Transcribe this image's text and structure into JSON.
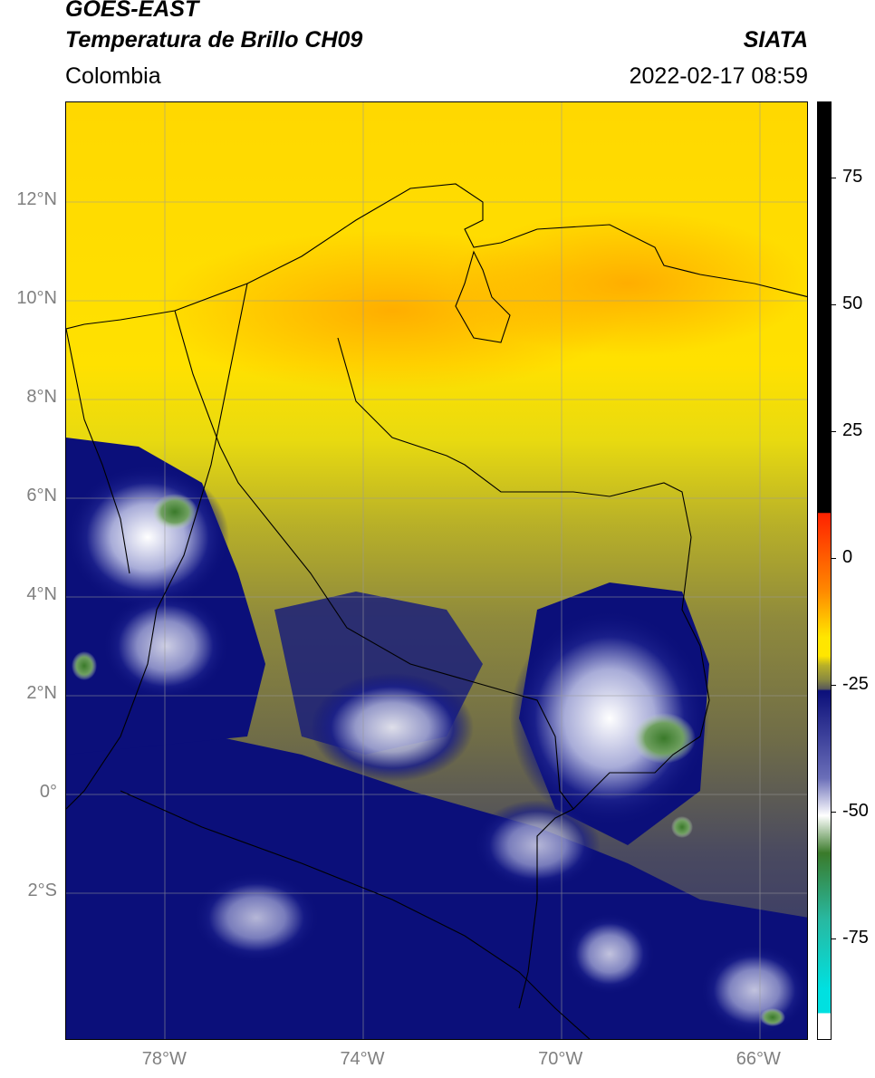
{
  "header": {
    "title_line1": "GOES-EAST",
    "title_line2": "Temperatura de Brillo CH09",
    "source": "SIATA",
    "region": "Colombia",
    "timestamp": "2022-02-17 08:59"
  },
  "map": {
    "lat_labels": [
      "12°N",
      "10°N",
      "8°N",
      "6°N",
      "4°N",
      "2°N",
      "0°",
      "2°S"
    ],
    "lon_labels": [
      "78°W",
      "74°W",
      "70°W",
      "66°W"
    ],
    "extent": {
      "lon_min": -80,
      "lon_max": -65,
      "lat_min": -5,
      "lat_max": 14
    }
  },
  "colorbar": {
    "tick_labels": [
      "75",
      "50",
      "25",
      "0",
      "-25",
      "-50",
      "-75"
    ],
    "range": [
      -95,
      90
    ],
    "colors": {
      "warm_top": "#000000",
      "red": "#ff2200",
      "orange": "#ff8800",
      "yellow": "#ffe600",
      "olive": "#8a8a40",
      "gray": "#595959",
      "navy": "#0b0f7a",
      "white": "#ffffff",
      "green": "#3a7a2a",
      "teal": "#28b8a0",
      "cyan": "#00e0e0"
    }
  }
}
